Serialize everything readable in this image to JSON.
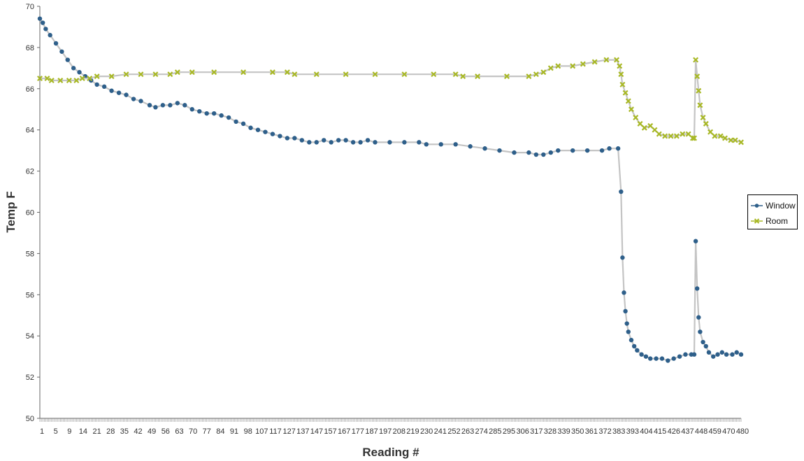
{
  "chart_data": {
    "type": "line",
    "xlabel": "Reading #",
    "ylabel": "Temp F",
    "ylim": [
      50,
      70
    ],
    "yticks": [
      50,
      52,
      54,
      56,
      58,
      60,
      62,
      64,
      66,
      68,
      70
    ],
    "x_tick_labels": [
      "1",
      "5",
      "9",
      "14",
      "21",
      "28",
      "35",
      "42",
      "49",
      "56",
      "63",
      "70",
      "77",
      "84",
      "91",
      "98",
      "107",
      "117",
      "127",
      "137",
      "147",
      "157",
      "167",
      "177",
      "187",
      "197",
      "208",
      "219",
      "230",
      "241",
      "252",
      "263",
      "274",
      "285",
      "295",
      "306",
      "317",
      "328",
      "339",
      "350",
      "361",
      "372",
      "383",
      "393",
      "404",
      "415",
      "426",
      "437",
      "448",
      "459",
      "470",
      "480"
    ],
    "x_range": [
      1,
      480
    ],
    "legend": "right",
    "grid": false,
    "series": [
      {
        "name": "Window",
        "color": "#2E5F8A",
        "marker": "circle",
        "points": [
          [
            1,
            69.4
          ],
          [
            3,
            69.2
          ],
          [
            5,
            68.9
          ],
          [
            8,
            68.6
          ],
          [
            12,
            68.2
          ],
          [
            16,
            67.8
          ],
          [
            20,
            67.4
          ],
          [
            24,
            67.0
          ],
          [
            28,
            66.8
          ],
          [
            32,
            66.6
          ],
          [
            36,
            66.4
          ],
          [
            40,
            66.2
          ],
          [
            45,
            66.1
          ],
          [
            50,
            65.9
          ],
          [
            55,
            65.8
          ],
          [
            60,
            65.7
          ],
          [
            65,
            65.5
          ],
          [
            70,
            65.4
          ],
          [
            76,
            65.2
          ],
          [
            80,
            65.1
          ],
          [
            85,
            65.2
          ],
          [
            90,
            65.2
          ],
          [
            95,
            65.3
          ],
          [
            100,
            65.2
          ],
          [
            105,
            65.0
          ],
          [
            110,
            64.9
          ],
          [
            115,
            64.8
          ],
          [
            120,
            64.8
          ],
          [
            125,
            64.7
          ],
          [
            130,
            64.6
          ],
          [
            135,
            64.4
          ],
          [
            140,
            64.3
          ],
          [
            145,
            64.1
          ],
          [
            150,
            64.0
          ],
          [
            155,
            63.9
          ],
          [
            160,
            63.8
          ],
          [
            165,
            63.7
          ],
          [
            170,
            63.6
          ],
          [
            175,
            63.6
          ],
          [
            180,
            63.5
          ],
          [
            185,
            63.4
          ],
          [
            190,
            63.4
          ],
          [
            195,
            63.5
          ],
          [
            200,
            63.4
          ],
          [
            205,
            63.5
          ],
          [
            210,
            63.5
          ],
          [
            215,
            63.4
          ],
          [
            220,
            63.4
          ],
          [
            225,
            63.5
          ],
          [
            230,
            63.4
          ],
          [
            240,
            63.4
          ],
          [
            250,
            63.4
          ],
          [
            260,
            63.4
          ],
          [
            265,
            63.3
          ],
          [
            275,
            63.3
          ],
          [
            285,
            63.3
          ],
          [
            295,
            63.2
          ],
          [
            305,
            63.1
          ],
          [
            315,
            63.0
          ],
          [
            325,
            62.9
          ],
          [
            335,
            62.9
          ],
          [
            340,
            62.8
          ],
          [
            345,
            62.8
          ],
          [
            350,
            62.9
          ],
          [
            355,
            63.0
          ],
          [
            365,
            63.0
          ],
          [
            375,
            63.0
          ],
          [
            385,
            63.0
          ],
          [
            390,
            63.1
          ],
          [
            396,
            63.1
          ],
          [
            398,
            61.0
          ],
          [
            399,
            57.8
          ],
          [
            400,
            56.1
          ],
          [
            401,
            55.2
          ],
          [
            402,
            54.6
          ],
          [
            403,
            54.2
          ],
          [
            405,
            53.8
          ],
          [
            407,
            53.5
          ],
          [
            409,
            53.3
          ],
          [
            412,
            53.1
          ],
          [
            415,
            53.0
          ],
          [
            418,
            52.9
          ],
          [
            422,
            52.9
          ],
          [
            426,
            52.9
          ],
          [
            430,
            52.8
          ],
          [
            434,
            52.9
          ],
          [
            438,
            53.0
          ],
          [
            442,
            53.1
          ],
          [
            446,
            53.1
          ],
          [
            448,
            53.1
          ],
          [
            449,
            58.6
          ],
          [
            450,
            56.3
          ],
          [
            451,
            54.9
          ],
          [
            452,
            54.2
          ],
          [
            454,
            53.7
          ],
          [
            456,
            53.5
          ],
          [
            458,
            53.2
          ],
          [
            461,
            53.0
          ],
          [
            464,
            53.1
          ],
          [
            467,
            53.2
          ],
          [
            470,
            53.1
          ],
          [
            474,
            53.1
          ],
          [
            477,
            53.2
          ],
          [
            480,
            53.1
          ]
        ]
      },
      {
        "name": "Room",
        "color": "#A8B825",
        "marker": "x",
        "points": [
          [
            1,
            66.5
          ],
          [
            6,
            66.5
          ],
          [
            9,
            66.4
          ],
          [
            15,
            66.4
          ],
          [
            21,
            66.4
          ],
          [
            26,
            66.4
          ],
          [
            30,
            66.5
          ],
          [
            35,
            66.5
          ],
          [
            40,
            66.6
          ],
          [
            50,
            66.6
          ],
          [
            60,
            66.7
          ],
          [
            70,
            66.7
          ],
          [
            80,
            66.7
          ],
          [
            90,
            66.7
          ],
          [
            95,
            66.8
          ],
          [
            105,
            66.8
          ],
          [
            120,
            66.8
          ],
          [
            140,
            66.8
          ],
          [
            160,
            66.8
          ],
          [
            170,
            66.8
          ],
          [
            175,
            66.7
          ],
          [
            190,
            66.7
          ],
          [
            210,
            66.7
          ],
          [
            230,
            66.7
          ],
          [
            250,
            66.7
          ],
          [
            270,
            66.7
          ],
          [
            285,
            66.7
          ],
          [
            290,
            66.6
          ],
          [
            300,
            66.6
          ],
          [
            320,
            66.6
          ],
          [
            335,
            66.6
          ],
          [
            340,
            66.7
          ],
          [
            345,
            66.8
          ],
          [
            350,
            67.0
          ],
          [
            355,
            67.1
          ],
          [
            365,
            67.1
          ],
          [
            372,
            67.2
          ],
          [
            380,
            67.3
          ],
          [
            388,
            67.4
          ],
          [
            395,
            67.4
          ],
          [
            397,
            67.1
          ],
          [
            398,
            66.7
          ],
          [
            399,
            66.2
          ],
          [
            401,
            65.8
          ],
          [
            403,
            65.4
          ],
          [
            405,
            65.0
          ],
          [
            408,
            64.6
          ],
          [
            411,
            64.3
          ],
          [
            414,
            64.1
          ],
          [
            418,
            64.2
          ],
          [
            421,
            64.0
          ],
          [
            424,
            63.8
          ],
          [
            428,
            63.7
          ],
          [
            432,
            63.7
          ],
          [
            436,
            63.7
          ],
          [
            440,
            63.8
          ],
          [
            444,
            63.8
          ],
          [
            447,
            63.6
          ],
          [
            448,
            63.6
          ],
          [
            449,
            67.4
          ],
          [
            450,
            66.6
          ],
          [
            451,
            65.9
          ],
          [
            452,
            65.2
          ],
          [
            454,
            64.6
          ],
          [
            456,
            64.3
          ],
          [
            459,
            63.9
          ],
          [
            462,
            63.7
          ],
          [
            466,
            63.7
          ],
          [
            469,
            63.6
          ],
          [
            473,
            63.5
          ],
          [
            476,
            63.5
          ],
          [
            480,
            63.4
          ]
        ]
      }
    ]
  }
}
